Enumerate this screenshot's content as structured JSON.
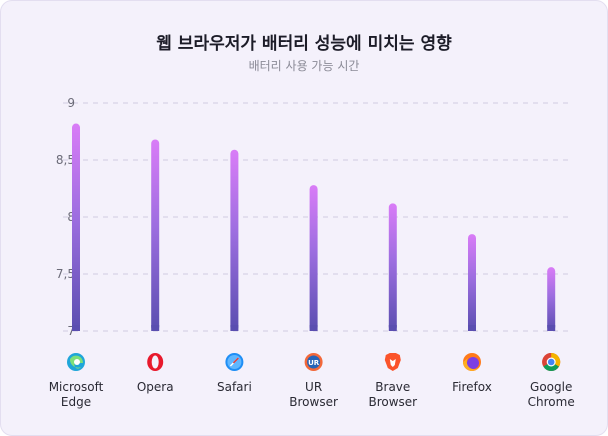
{
  "header": {
    "title": "웹 브라우저가 배터리 성능에 미치는 영향",
    "subtitle": "배터리 사용 가능 시간"
  },
  "chart_data": {
    "type": "bar",
    "title": "웹 브라우저가 배터리 성능에 미치는 영향",
    "subtitle": "배터리 사용 가능 시간",
    "xlabel": "",
    "ylabel": "",
    "ylim": [
      7,
      9
    ],
    "yticks": [
      "7",
      "7,5",
      "8",
      "8,5",
      "9"
    ],
    "grid": true,
    "categories": [
      {
        "name": "Microsoft Edge",
        "lines": [
          "Microsoft",
          "Edge"
        ],
        "icon": "edge-icon"
      },
      {
        "name": "Opera",
        "lines": [
          "Opera"
        ],
        "icon": "opera-icon"
      },
      {
        "name": "Safari",
        "lines": [
          "Safari"
        ],
        "icon": "safari-icon"
      },
      {
        "name": "UR Browser",
        "lines": [
          "UR",
          "Browser"
        ],
        "icon": "ur-browser-icon"
      },
      {
        "name": "Brave Browser",
        "lines": [
          "Brave",
          "Browser"
        ],
        "icon": "brave-icon"
      },
      {
        "name": "Firefox",
        "lines": [
          "Firefox"
        ],
        "icon": "firefox-icon"
      },
      {
        "name": "Google Chrome",
        "lines": [
          "Google",
          "Chrome"
        ],
        "icon": "chrome-icon"
      }
    ],
    "values": [
      8.82,
      8.68,
      8.59,
      8.28,
      8.12,
      7.85,
      7.56
    ],
    "colors": {
      "bar_top": "#d97cf7",
      "bar_mid": "#9d6ee0",
      "bar_bottom": "#5a4eb0",
      "grid": "#cfcbe0"
    }
  }
}
